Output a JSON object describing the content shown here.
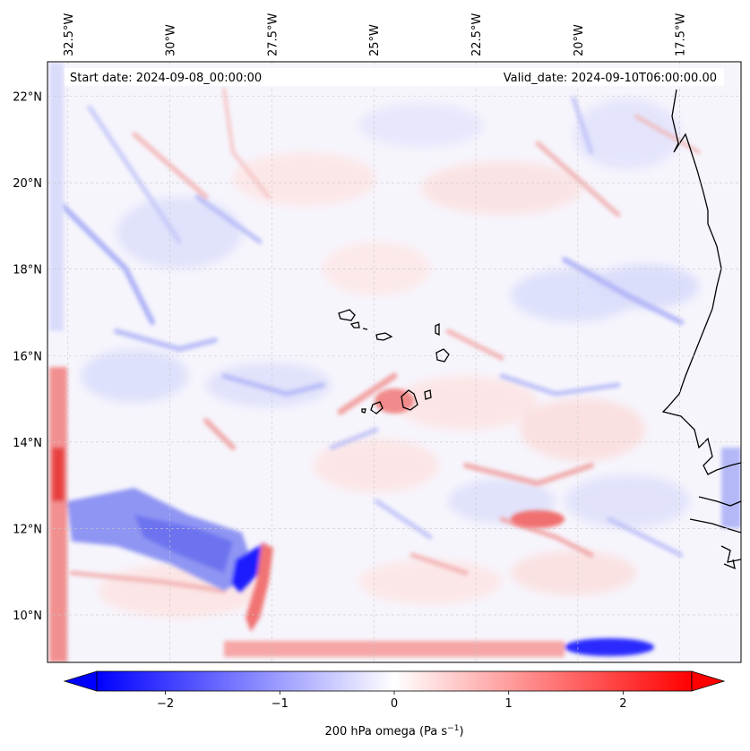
{
  "figure": {
    "start_date_text": "Start date: 2024-09-08_00:00:00",
    "valid_date_text": "Valid_date: 2024-09-10T06:00:00.00"
  },
  "map": {
    "lon_range": [
      -33.0,
      -16.0
    ],
    "lat_range": [
      8.9,
      22.8
    ],
    "lon_ticks": [
      {
        "value": -32.5,
        "label": "32.5°W"
      },
      {
        "value": -30.0,
        "label": "30°W"
      },
      {
        "value": -27.5,
        "label": "27.5°W"
      },
      {
        "value": -25.0,
        "label": "25°W"
      },
      {
        "value": -22.5,
        "label": "22.5°W"
      },
      {
        "value": -20.0,
        "label": "20°W"
      },
      {
        "value": -17.5,
        "label": "17.5°W"
      }
    ],
    "lat_ticks": [
      {
        "value": 22,
        "label": "22°N"
      },
      {
        "value": 20,
        "label": "20°N"
      },
      {
        "value": 18,
        "label": "18°N"
      },
      {
        "value": 16,
        "label": "16°N"
      },
      {
        "value": 14,
        "label": "14°N"
      },
      {
        "value": 12,
        "label": "12°N"
      },
      {
        "value": 10,
        "label": "10°N"
      }
    ],
    "gridlines": true,
    "coastline_color": "#000000"
  },
  "colorbar": {
    "label_main": "200 hPa omega (Pa s",
    "label_sup": "−1",
    "label_close": ")",
    "range": [
      -2.6,
      2.6
    ],
    "extend": "both",
    "colormap": "bwr",
    "ticks": [
      {
        "value": -2,
        "label": "−2"
      },
      {
        "value": -1,
        "label": "−1"
      },
      {
        "value": 0,
        "label": "0"
      },
      {
        "value": 1,
        "label": "1"
      },
      {
        "value": 2,
        "label": "2"
      }
    ],
    "colors": {
      "min": "#0000ff",
      "mid": "#ffffff",
      "max": "#ff0000"
    }
  }
}
